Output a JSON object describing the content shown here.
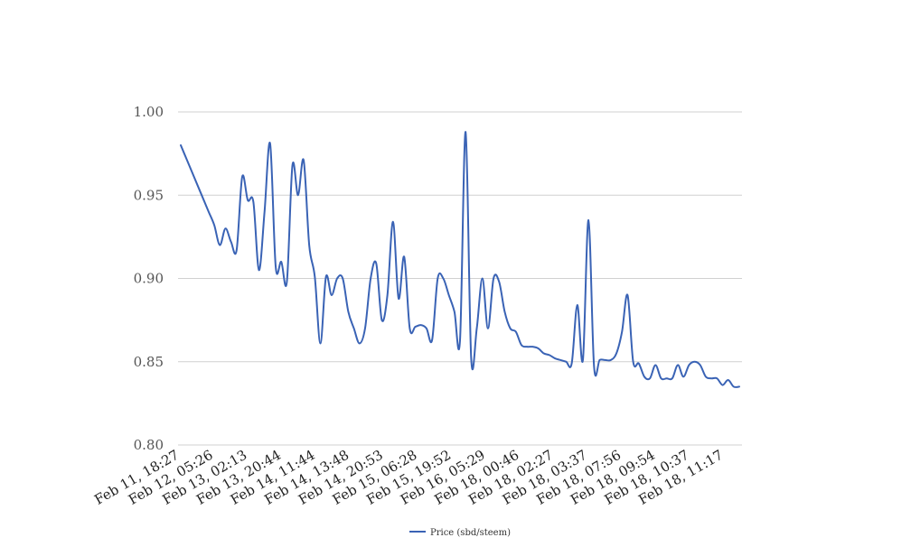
{
  "chart_data": {
    "type": "line",
    "title": "",
    "xlabel": "",
    "ylabel": "",
    "ylim": [
      0.8,
      1.0
    ],
    "yticks": [
      "1.00",
      "0.95",
      "0.90",
      "0.85",
      "0.80"
    ],
    "yticks_values": [
      1.0,
      0.95,
      0.9,
      0.85,
      0.8
    ],
    "grid": true,
    "legend_position": "bottom-center",
    "xtick_labels": [
      "Feb 11, 18:27",
      "Feb 12, 05:26",
      "Feb 13, 02:13",
      "Feb 13, 20:44",
      "Feb 14, 11:44",
      "Feb 14, 13:48",
      "Feb 14, 20:53",
      "Feb 15, 06:28",
      "Feb 15, 19:52",
      "Feb 16, 05:29",
      "Feb 18, 00:46",
      "Feb 18, 02:27",
      "Feb 18, 03:37",
      "Feb 18, 07:56",
      "Feb 18, 09:54",
      "Feb 18, 10:37",
      "Feb 18, 11:17"
    ],
    "series": [
      {
        "name": "Price (sbd/steem)",
        "color": "#3a63b5",
        "values": [
          0.98,
          0.972,
          0.964,
          0.956,
          0.948,
          0.94,
          0.932,
          0.92,
          0.93,
          0.922,
          0.917,
          0.961,
          0.947,
          0.946,
          0.905,
          0.94,
          0.981,
          0.907,
          0.91,
          0.898,
          0.968,
          0.95,
          0.971,
          0.92,
          0.901,
          0.861,
          0.901,
          0.89,
          0.9,
          0.9,
          0.88,
          0.87,
          0.861,
          0.87,
          0.9,
          0.909,
          0.875,
          0.89,
          0.934,
          0.888,
          0.913,
          0.87,
          0.871,
          0.872,
          0.87,
          0.863,
          0.9,
          0.9,
          0.89,
          0.88,
          0.863,
          0.988,
          0.852,
          0.87,
          0.9,
          0.87,
          0.9,
          0.898,
          0.88,
          0.87,
          0.868,
          0.86,
          0.859,
          0.859,
          0.858,
          0.855,
          0.854,
          0.852,
          0.851,
          0.85,
          0.849,
          0.884,
          0.851,
          0.935,
          0.847,
          0.851,
          0.851,
          0.851,
          0.855,
          0.868,
          0.89,
          0.85,
          0.849,
          0.841,
          0.84,
          0.848,
          0.84,
          0.84,
          0.84,
          0.848,
          0.841,
          0.848,
          0.85,
          0.848,
          0.841,
          0.84,
          0.84,
          0.836,
          0.839,
          0.835,
          0.835
        ]
      }
    ]
  },
  "legend": {
    "label": "Price (sbd/steem)",
    "color": "#3a63b5"
  }
}
